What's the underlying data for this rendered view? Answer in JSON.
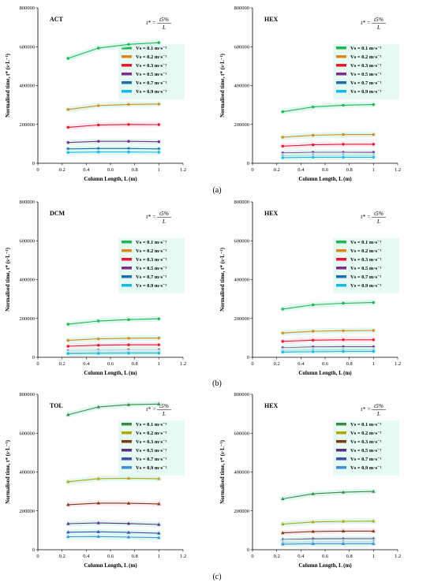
{
  "figure": {
    "row_labels": [
      "(a)",
      "(b)",
      "(c)"
    ]
  },
  "chart_data": [
    {
      "type": "line",
      "row": 0,
      "col": 0,
      "title": "ACT",
      "formula": {
        "lhs": "t* =",
        "num": "t5%",
        "den": "L"
      },
      "xlabel": "Column Length, L (m)",
      "ylabel": "Normalised time, t* (s·L⁻¹)",
      "xlim": [
        0,
        1.2
      ],
      "ylim": [
        0,
        800000
      ],
      "xticks": [
        0,
        0.2,
        0.4,
        0.6,
        0.8,
        1,
        1.2
      ],
      "yticks": [
        0,
        200000,
        400000,
        600000,
        800000
      ],
      "x": [
        0.25,
        0.5,
        0.75,
        1.0
      ],
      "series": [
        {
          "name": "Vs = 0.1 m·s⁻¹",
          "values": [
            540000,
            593000,
            612000,
            621000
          ]
        },
        {
          "name": "Vs = 0.2 m·s⁻¹",
          "values": [
            277000,
            297000,
            303000,
            305000
          ]
        },
        {
          "name": "Vs = 0.3 m·s⁻¹",
          "values": [
            185000,
            197000,
            200000,
            199000
          ]
        },
        {
          "name": "Vs = 0.5 m·s⁻¹",
          "values": [
            107000,
            113000,
            113000,
            111000
          ]
        },
        {
          "name": "Vs = 0.7 m·s⁻¹",
          "values": [
            74000,
            76000,
            76000,
            74000
          ]
        },
        {
          "name": "Vs = 0.9 m·s⁻¹",
          "values": [
            56000,
            58000,
            58000,
            57000
          ]
        }
      ]
    },
    {
      "type": "line",
      "row": 0,
      "col": 1,
      "title": "HEX",
      "formula": {
        "lhs": "t* =",
        "num": "t5%",
        "den": "L"
      },
      "xlabel": "Column Length, L (m)",
      "ylabel": "Normalised time, t* (s·L⁻¹)",
      "xlim": [
        0,
        1.2
      ],
      "ylim": [
        0,
        800000
      ],
      "xticks": [
        0,
        0.2,
        0.4,
        0.6,
        0.8,
        1,
        1.2
      ],
      "yticks": [
        0,
        200000,
        400000,
        600000,
        800000
      ],
      "x": [
        0.25,
        0.5,
        0.75,
        1.0
      ],
      "series": [
        {
          "name": "Vs = 0.1 m·s⁻¹",
          "values": [
            265000,
            290000,
            299000,
            302000
          ]
        },
        {
          "name": "Vs = 0.2 m·s⁻¹",
          "values": [
            134000,
            144000,
            148000,
            148000
          ]
        },
        {
          "name": "Vs = 0.3 m·s⁻¹",
          "values": [
            88000,
            95000,
            98000,
            98000
          ]
        },
        {
          "name": "Vs = 0.5 m·s⁻¹",
          "values": [
            53000,
            56000,
            56000,
            56000
          ]
        },
        {
          "name": "Vs = 0.7 m·s⁻¹",
          "values": [
            38000,
            41000,
            41000,
            40000
          ]
        },
        {
          "name": "Vs = 0.9 m·s⁻¹",
          "values": [
            29000,
            31000,
            31000,
            31000
          ]
        }
      ]
    },
    {
      "type": "line",
      "row": 1,
      "col": 0,
      "title": "DCM",
      "formula": {
        "lhs": "t* =",
        "num": "t5%",
        "den": "L"
      },
      "xlabel": "Column Length, L (m)",
      "ylabel": "Normalised time, t* (s·L⁻¹)",
      "xlim": [
        0,
        1.2
      ],
      "ylim": [
        0,
        800000
      ],
      "xticks": [
        0,
        0.2,
        0.4,
        0.6,
        0.8,
        1,
        1.2
      ],
      "yticks": [
        0,
        200000,
        400000,
        600000,
        800000
      ],
      "x": [
        0.25,
        0.5,
        0.75,
        1.0
      ],
      "series": [
        {
          "name": "Vs = 0.1 m·s⁻¹",
          "values": [
            170000,
            187000,
            194000,
            198000
          ]
        },
        {
          "name": "Vs = 0.2 m·s⁻¹",
          "values": [
            87000,
            95000,
            98000,
            99000
          ]
        },
        {
          "name": "Vs = 0.3 m·s⁻¹",
          "values": [
            57000,
            62000,
            64000,
            64000
          ]
        },
        {
          "name": "Vs = 0.5 m·s⁻¹",
          "values": [
            34000,
            37000,
            38000,
            38000
          ]
        },
        {
          "name": "Vs = 0.7 m·s⁻¹",
          "values": [
            24000,
            26000,
            27000,
            27000
          ]
        },
        {
          "name": "Vs = 0.9 m·s⁻¹",
          "values": [
            19000,
            20000,
            21000,
            21000
          ]
        }
      ]
    },
    {
      "type": "line",
      "row": 1,
      "col": 1,
      "title": "HEX",
      "formula": {
        "lhs": "t* =",
        "num": "t5%",
        "den": "L"
      },
      "xlabel": "Column Length, L (m)",
      "ylabel": "Normalised time, t* (s·L⁻¹)",
      "xlim": [
        0,
        1.2
      ],
      "ylim": [
        0,
        800000
      ],
      "xticks": [
        0,
        0.2,
        0.4,
        0.6,
        0.8,
        1,
        1.2
      ],
      "yticks": [
        0,
        200000,
        400000,
        600000,
        800000
      ],
      "x": [
        0.25,
        0.5,
        0.75,
        1.0
      ],
      "series": [
        {
          "name": "Vs = 0.1 m·s⁻¹",
          "values": [
            248000,
            270000,
            278000,
            282000
          ]
        },
        {
          "name": "Vs = 0.2 m·s⁻¹",
          "values": [
            125000,
            134000,
            137000,
            138000
          ]
        },
        {
          "name": "Vs = 0.3 m·s⁻¹",
          "values": [
            82000,
            88000,
            90000,
            90000
          ]
        },
        {
          "name": "Vs = 0.5 m·s⁻¹",
          "values": [
            49000,
            53000,
            54000,
            54000
          ]
        },
        {
          "name": "Vs = 0.7 m·s⁻¹",
          "values": [
            35000,
            38000,
            38000,
            38000
          ]
        },
        {
          "name": "Vs = 0.9 m·s⁻¹",
          "values": [
            27000,
            29000,
            30000,
            30000
          ]
        }
      ]
    },
    {
      "type": "line",
      "row": 2,
      "col": 0,
      "title": "TOL",
      "formula": {
        "lhs": "t* =",
        "num": "t5%",
        "den": "L"
      },
      "xlabel": "Column Length, L (m)",
      "ylabel": "Normalised time, t* (s·L⁻¹)",
      "xlim": [
        0,
        1.2
      ],
      "ylim": [
        0,
        800000
      ],
      "xticks": [
        0,
        0.2,
        0.4,
        0.6,
        0.8,
        1,
        1.2
      ],
      "yticks": [
        0,
        200000,
        400000,
        600000,
        800000
      ],
      "x": [
        0.25,
        0.5,
        0.75,
        1.0
      ],
      "series": [
        {
          "name": "Vs = 0.1 m·s⁻¹",
          "values": [
            695000,
            735000,
            747000,
            750000
          ]
        },
        {
          "name": "Vs = 0.2 m·s⁻¹",
          "values": [
            350000,
            366000,
            368000,
            366000
          ]
        },
        {
          "name": "Vs = 0.3 m·s⁻¹",
          "values": [
            232000,
            240000,
            239000,
            236000
          ]
        },
        {
          "name": "Vs = 0.5 m·s⁻¹",
          "values": [
            134000,
            138000,
            135000,
            130000
          ]
        },
        {
          "name": "Vs = 0.7 m·s⁻¹",
          "values": [
            90000,
            92000,
            89000,
            85000
          ]
        },
        {
          "name": "Vs = 0.9 m·s⁻¹",
          "values": [
            67000,
            68000,
            65000,
            62000
          ]
        }
      ]
    },
    {
      "type": "line",
      "row": 2,
      "col": 1,
      "title": "HEX",
      "formula": {
        "lhs": "t* =",
        "num": "t5%",
        "den": "L"
      },
      "xlabel": "Column Length, L (m)",
      "ylabel": "Normalised time, t* (s·L⁻¹)",
      "xlim": [
        0,
        1.2
      ],
      "ylim": [
        0,
        800000
      ],
      "xticks": [
        0,
        0.2,
        0.4,
        0.6,
        0.8,
        1,
        1.2
      ],
      "yticks": [
        0,
        200000,
        400000,
        600000,
        800000
      ],
      "x": [
        0.25,
        0.5,
        0.75,
        1.0
      ],
      "series": [
        {
          "name": "Vs = 0.1 m·s⁻¹",
          "values": [
            262000,
            288000,
            296000,
            300000
          ]
        },
        {
          "name": "Vs = 0.2 m·s⁻¹",
          "values": [
            132000,
            143000,
            146000,
            147000
          ]
        },
        {
          "name": "Vs = 0.3 m·s⁻¹",
          "values": [
            87000,
            94000,
            96000,
            96000
          ]
        },
        {
          "name": "Vs = 0.5 m·s⁻¹",
          "values": [
            52000,
            56000,
            57000,
            57000
          ]
        },
        {
          "name": "Vs = 0.7 m·s⁻¹",
          "values": [
            38000,
            40000,
            41000,
            41000
          ]
        },
        {
          "name": "Vs = 0.9 m·s⁻¹",
          "values": [
            29000,
            31000,
            31000,
            31000
          ]
        }
      ]
    }
  ],
  "colors": {
    "row_ab": [
      "#1fb552",
      "#d98b1a",
      "#e8162e",
      "#7b2d8b",
      "#1c6fb0",
      "#1ab8e8"
    ],
    "row_c": [
      "#3a8a45",
      "#b5a20f",
      "#7a3b13",
      "#5a2f86",
      "#3a4fb0",
      "#3c8fd8"
    ],
    "glow": "#d8f7ec",
    "pink": "#fde6ee"
  }
}
